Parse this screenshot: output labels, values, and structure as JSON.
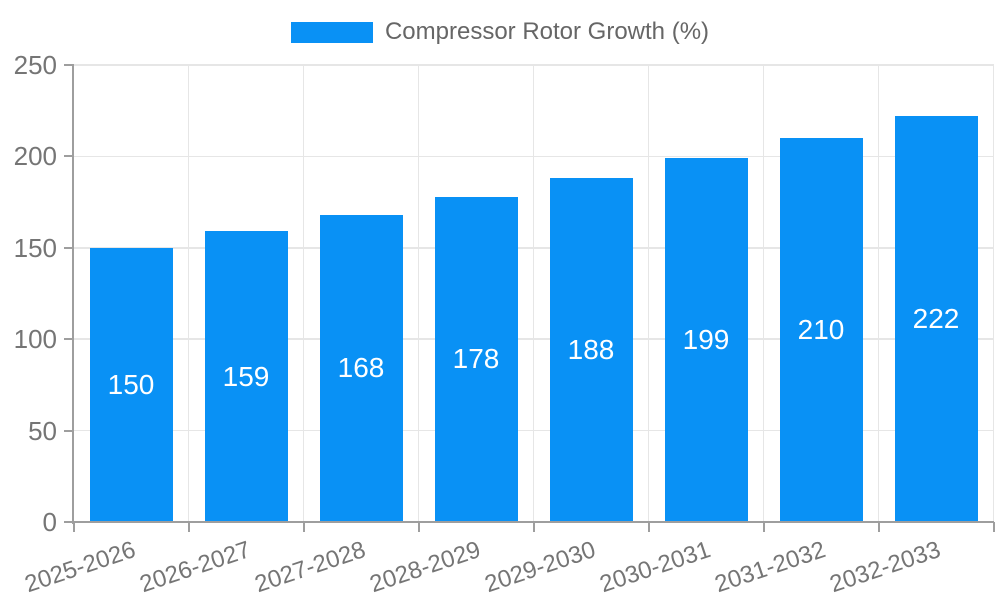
{
  "chart_data": {
    "type": "bar",
    "categories": [
      "2025-2026",
      "2026-2027",
      "2027-2028",
      "2028-2029",
      "2029-2030",
      "2030-2031",
      "2031-2032",
      "2032-2033"
    ],
    "series": [
      {
        "name": "Compressor Rotor Growth (%)",
        "values": [
          150,
          159,
          168,
          178,
          188,
          199,
          210,
          222
        ]
      }
    ],
    "value_labels_shown": true,
    "xlabel": "",
    "ylabel": "",
    "ylim": [
      0,
      250
    ],
    "yticks": [
      0,
      50,
      100,
      150,
      200,
      250
    ],
    "grid": "both",
    "legend_position": "top-center",
    "x_label_rotation_deg": -18.5
  },
  "colors": {
    "bar": "#0991f5",
    "grid_line": "#e6e6e6",
    "axis_line": "#9e9e9e",
    "tick_label": "#757575",
    "legend_text": "#666666",
    "value_label": "#ffffff",
    "background": "#ffffff"
  }
}
